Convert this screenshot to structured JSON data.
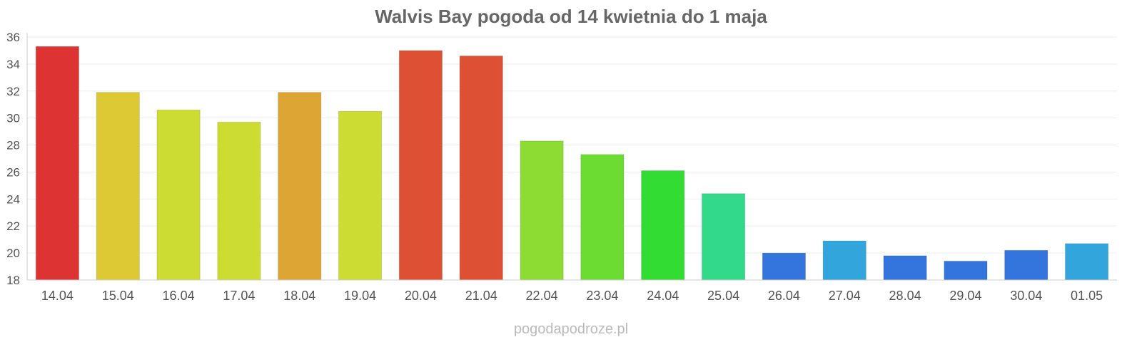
{
  "chart_data": {
    "type": "bar",
    "title": "Walvis Bay pogoda od 14 kwietnia do 1 maja",
    "xlabel": "",
    "ylabel": "",
    "categories": [
      "14.04",
      "15.04",
      "16.04",
      "17.04",
      "18.04",
      "19.04",
      "20.04",
      "21.04",
      "22.04",
      "23.04",
      "24.04",
      "25.04",
      "26.04",
      "27.04",
      "28.04",
      "29.04",
      "30.04",
      "01.05"
    ],
    "values": [
      35.3,
      31.9,
      30.6,
      29.7,
      31.9,
      30.5,
      35.0,
      34.6,
      28.3,
      27.3,
      26.1,
      24.4,
      20.0,
      20.9,
      19.8,
      19.4,
      20.2,
      20.7
    ],
    "colors": [
      "#dd3333",
      "#ddc933",
      "#cddc33",
      "#cddc33",
      "#dda533",
      "#cddc33",
      "#dd5033",
      "#dd5033",
      "#8cdc33",
      "#6cdc33",
      "#33dc33",
      "#33d98a",
      "#3375dd",
      "#33a5dd",
      "#3375dd",
      "#3375dd",
      "#3375dd",
      "#33a5dd"
    ],
    "ylim": [
      18,
      36
    ],
    "yticks": [
      18,
      20,
      22,
      24,
      26,
      28,
      30,
      32,
      34,
      36
    ],
    "grid": true,
    "legend": "none"
  },
  "source": "pogodapodroze.pl"
}
